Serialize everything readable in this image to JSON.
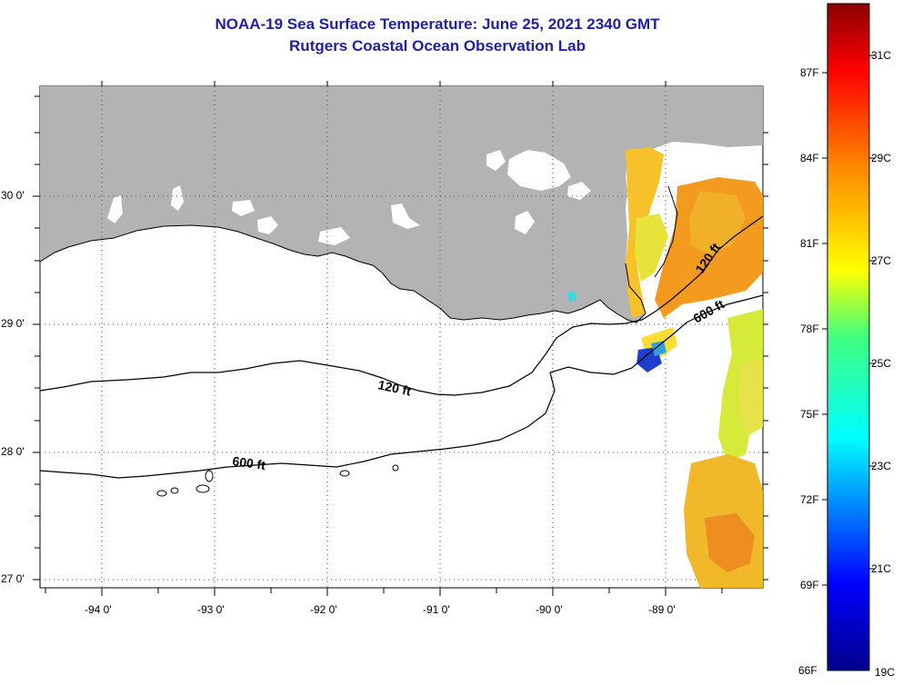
{
  "title": {
    "line1": "NOAA-19 Sea Surface Temperature:  June 25, 2021 2340 GMT",
    "line2": "Rutgers Coastal Ocean Observation Lab"
  },
  "axes": {
    "lat_labels": [
      "30 0'",
      "29 0'",
      "28 0'",
      "27 0'"
    ],
    "lon_labels": [
      "-94 0'",
      "-93 0'",
      "-92 0'",
      "-91 0'",
      "-90 0'",
      "-89 0'"
    ]
  },
  "contours": {
    "c120": "120 ft",
    "c600": "600 ft"
  },
  "colorbar": {
    "f_labels": [
      "87F",
      "84F",
      "81F",
      "78F",
      "75F",
      "72F",
      "69F",
      "66F"
    ],
    "c_labels": [
      "31C",
      "29C",
      "27C",
      "25C",
      "23C",
      "21C",
      "19C"
    ],
    "colors": [
      "#8b0000",
      "#ff0000",
      "#ff8c00",
      "#ffff00",
      "#00ffff",
      "#0000ff",
      "#00008b"
    ]
  },
  "colors": {
    "land": "#b3b3b3",
    "title": "#1f1fa8"
  }
}
